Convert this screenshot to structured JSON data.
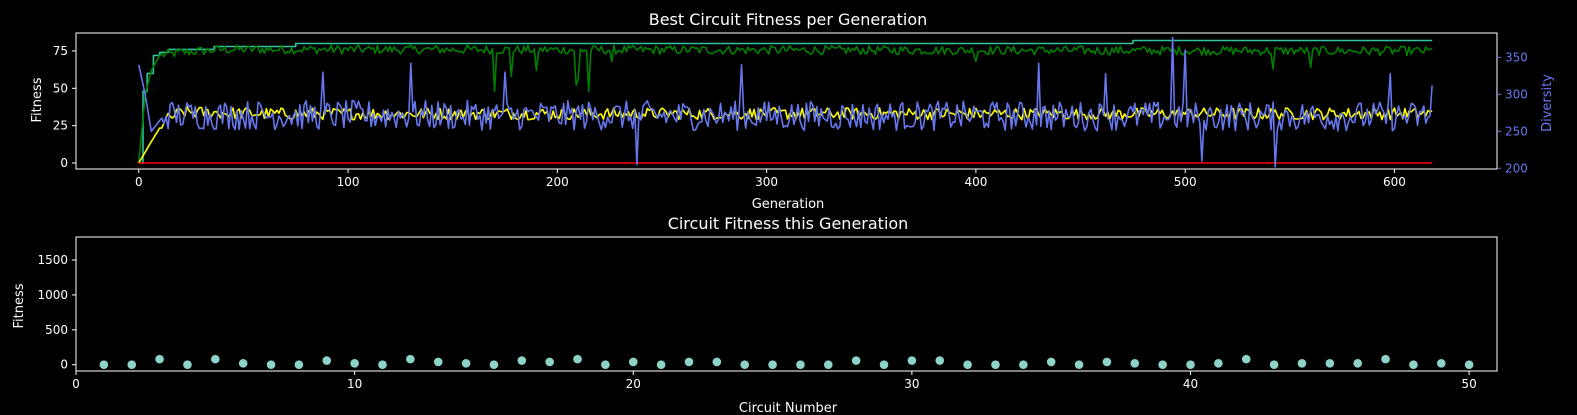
{
  "colors": {
    "background": "#000000",
    "axes": "#ffffff",
    "best": "#008000",
    "elite": "#2ec4a0",
    "mean": "#ffff00",
    "worst": "#ff0000",
    "diversity": "#6677ee",
    "scatter": "#8dd3c7"
  },
  "chart_data": [
    {
      "type": "line",
      "title": "Best Circuit Fitness per Generation",
      "xlabel": "Generation",
      "ylabel": "Fitness",
      "y2label": "Diversity",
      "xlim": [
        -30,
        649
      ],
      "ylim": [
        -4,
        87
      ],
      "y2lim": [
        199,
        383
      ],
      "xticks": [
        0,
        100,
        200,
        300,
        400,
        500,
        600
      ],
      "yticks": [
        0,
        25,
        50,
        75
      ],
      "y2ticks": [
        200,
        250,
        300,
        350
      ],
      "grid": false,
      "generations": 619,
      "series": [
        {
          "axis": "left",
          "color": "#2ec4a0",
          "style": "step",
          "points": [
            [
              0,
              0
            ],
            [
              2,
              48
            ],
            [
              4,
              60
            ],
            [
              7,
              72
            ],
            [
              10,
              74
            ],
            [
              14,
              76
            ],
            [
              36,
              78
            ],
            [
              75,
              80
            ],
            [
              475,
              82
            ],
            [
              618,
              82
            ]
          ]
        },
        {
          "axis": "left",
          "color": "#008000",
          "style": "noisy",
          "base": [
            [
              0,
              0
            ],
            [
              3,
              45
            ],
            [
              6,
              62
            ],
            [
              10,
              72
            ],
            [
              20,
              74
            ],
            [
              40,
              76
            ],
            [
              80,
              76
            ],
            [
              618,
              75
            ]
          ],
          "noise": 3.0,
          "dips": [
            [
              170,
              48
            ],
            [
              178,
              58
            ],
            [
              190,
              62
            ],
            [
              209,
              52
            ],
            [
              210,
              57
            ],
            [
              215,
              48
            ],
            [
              226,
              68
            ],
            [
              400,
              68
            ],
            [
              542,
              63
            ],
            [
              560,
              64
            ]
          ]
        },
        {
          "axis": "left",
          "color": "#ffff00",
          "style": "noisy",
          "base": [
            [
              0,
              0
            ],
            [
              5,
              12
            ],
            [
              12,
              28
            ],
            [
              20,
              34
            ],
            [
              60,
              33
            ],
            [
              618,
              33
            ]
          ],
          "noise": 4.0,
          "dips": []
        },
        {
          "axis": "left",
          "color": "#ff0000",
          "style": "flat",
          "points": [
            [
              0,
              0
            ],
            [
              618,
              0
            ]
          ]
        },
        {
          "axis": "right",
          "color": "#6677ee",
          "style": "noisy",
          "base": [
            [
              0,
              340
            ],
            [
              3,
              300
            ],
            [
              6,
              250
            ],
            [
              12,
              272
            ],
            [
              40,
              272
            ],
            [
              618,
              270
            ]
          ],
          "noise": 20.0,
          "dips": [
            [
              88,
              330
            ],
            [
              130,
              342
            ],
            [
              175,
              330
            ],
            [
              238,
              205
            ],
            [
              288,
              340
            ],
            [
              430,
              342
            ],
            [
              462,
              328
            ],
            [
              494,
              377
            ],
            [
              500,
              360
            ],
            [
              508,
              210
            ],
            [
              543,
              202
            ],
            [
              598,
              328
            ],
            [
              618,
              312
            ]
          ]
        }
      ]
    },
    {
      "type": "scatter",
      "title": "Circuit Fitness this Generation",
      "xlabel": "Circuit Number",
      "ylabel": "Fitness",
      "xlim": [
        0,
        51
      ],
      "ylim": [
        -90,
        1830
      ],
      "xticks": [
        0,
        10,
        20,
        30,
        40,
        50
      ],
      "yticks": [
        0,
        500,
        1000,
        1500
      ],
      "grid": false,
      "x": [
        1,
        2,
        3,
        4,
        5,
        6,
        7,
        8,
        9,
        10,
        11,
        12,
        13,
        14,
        15,
        16,
        17,
        18,
        19,
        20,
        21,
        22,
        23,
        24,
        25,
        26,
        27,
        28,
        29,
        30,
        31,
        32,
        33,
        34,
        35,
        36,
        37,
        38,
        39,
        40,
        41,
        42,
        43,
        44,
        45,
        46,
        47,
        48,
        49,
        50
      ],
      "y": [
        0,
        0,
        80,
        0,
        80,
        20,
        0,
        0,
        60,
        20,
        0,
        80,
        40,
        20,
        0,
        60,
        40,
        80,
        0,
        40,
        0,
        40,
        40,
        0,
        0,
        0,
        0,
        60,
        0,
        60,
        60,
        0,
        0,
        0,
        40,
        0,
        40,
        20,
        0,
        0,
        20,
        80,
        0,
        20,
        20,
        20,
        80,
        0,
        20,
        0
      ]
    }
  ]
}
